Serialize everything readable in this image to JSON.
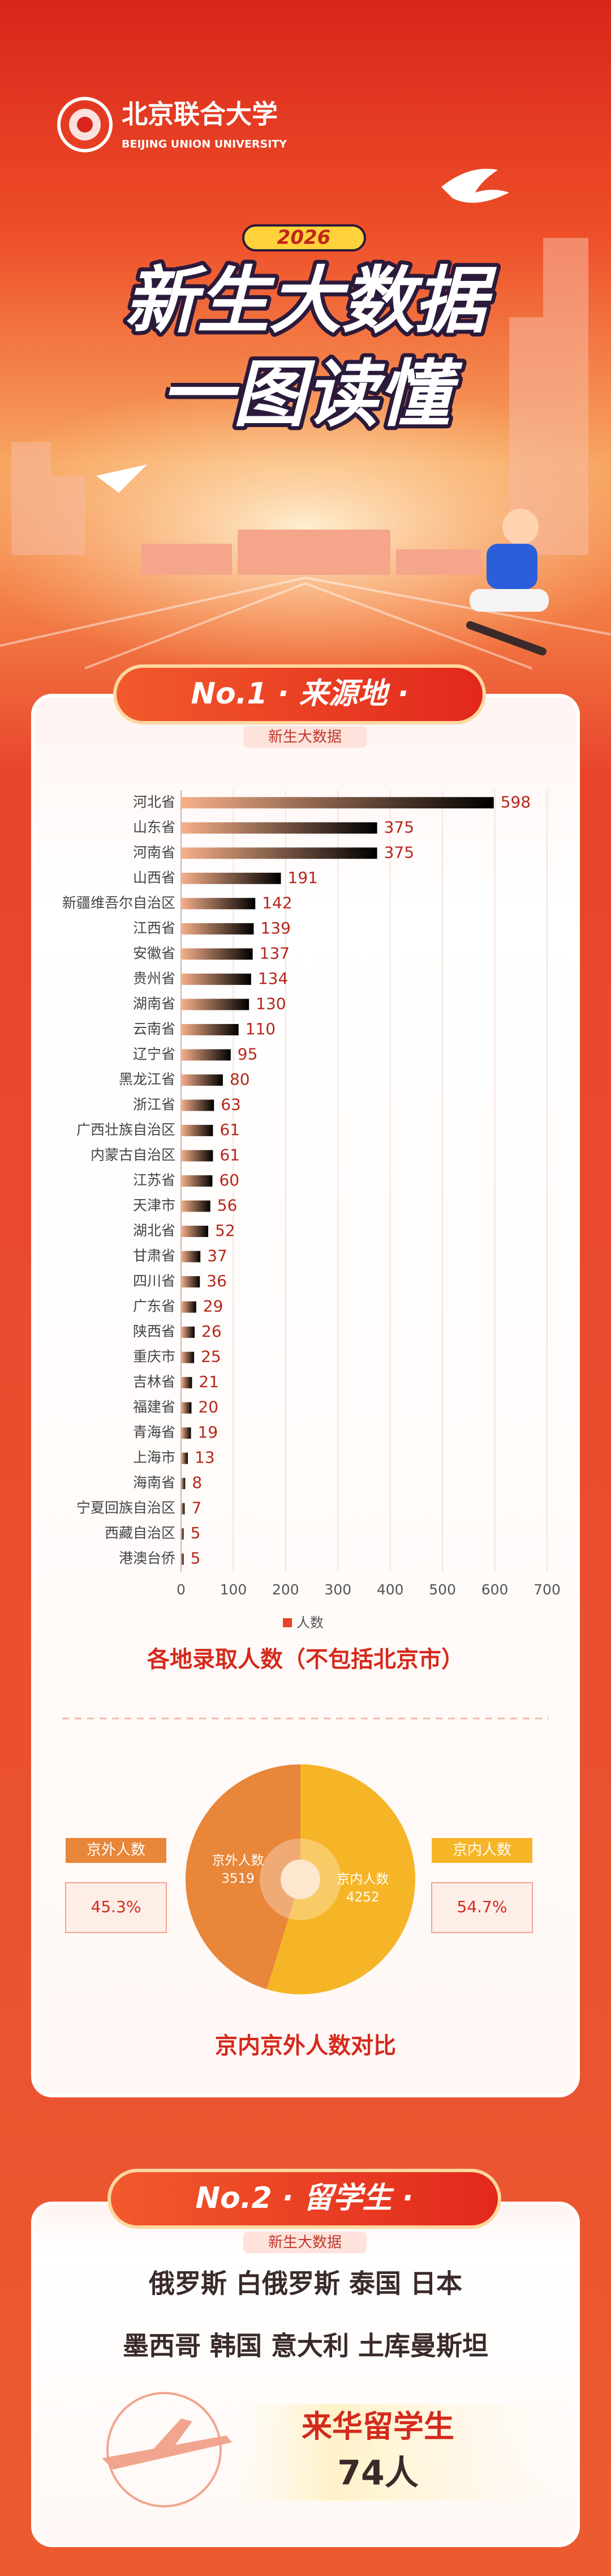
{
  "header": {
    "logo_cn": "北京联合大学",
    "logo_en": "BEIJING UNION UNIVERSITY",
    "year": "2026",
    "title_line1": "新生大数据",
    "title_line2": "一图读懂"
  },
  "section1": {
    "title": "No.1 · 来源地 ·",
    "tag": "新生大数据"
  },
  "chart_data": [
    {
      "type": "bar",
      "orientation": "horizontal",
      "title": "各地录取人数（不包括北京市）",
      "categories": [
        "河北省",
        "山东省",
        "河南省",
        "山西省",
        "新疆维吾尔自治区",
        "江西省",
        "安徽省",
        "贵州省",
        "湖南省",
        "云南省",
        "辽宁省",
        "黑龙江省",
        "浙江省",
        "广西壮族自治区",
        "内蒙古自治区",
        "江苏省",
        "天津市",
        "湖北省",
        "甘肃省",
        "四川省",
        "广东省",
        "陕西省",
        "重庆市",
        "吉林省",
        "福建省",
        "青海省",
        "上海市",
        "海南省",
        "宁夏回族自治区",
        "西藏自治区",
        "港澳台侨"
      ],
      "series": [
        {
          "name": "人数",
          "color": "#e8412c",
          "values": [
            598,
            375,
            375,
            191,
            142,
            139,
            137,
            134,
            130,
            110,
            95,
            80,
            63,
            61,
            61,
            60,
            56,
            52,
            37,
            36,
            29,
            26,
            25,
            21,
            20,
            19,
            13,
            8,
            7,
            5,
            5
          ]
        }
      ],
      "xlim": [
        0,
        700
      ],
      "xticks": [
        0,
        100,
        200,
        300,
        400,
        500,
        600,
        700
      ],
      "grid": true,
      "legend": "bottom"
    },
    {
      "type": "pie",
      "donut": true,
      "title": "京内京外人数对比",
      "categories": [
        "京外人数",
        "京内人数"
      ],
      "values": [
        3519,
        4252
      ],
      "colors": [
        "#e8863a",
        "#f6b526"
      ],
      "percentages": [
        45.3,
        54.7
      ],
      "percentage_labels": [
        "45.3%",
        "54.7%"
      ]
    }
  ],
  "section2": {
    "title": "No.2 · 留学生 ·",
    "tag": "新生大数据",
    "countries_line1": "俄罗斯 白俄罗斯 泰国 日本",
    "countries_line2": "墨西哥 韩国 意大利 土库曼斯坦",
    "label": "来华留学生",
    "count": "74人"
  }
}
